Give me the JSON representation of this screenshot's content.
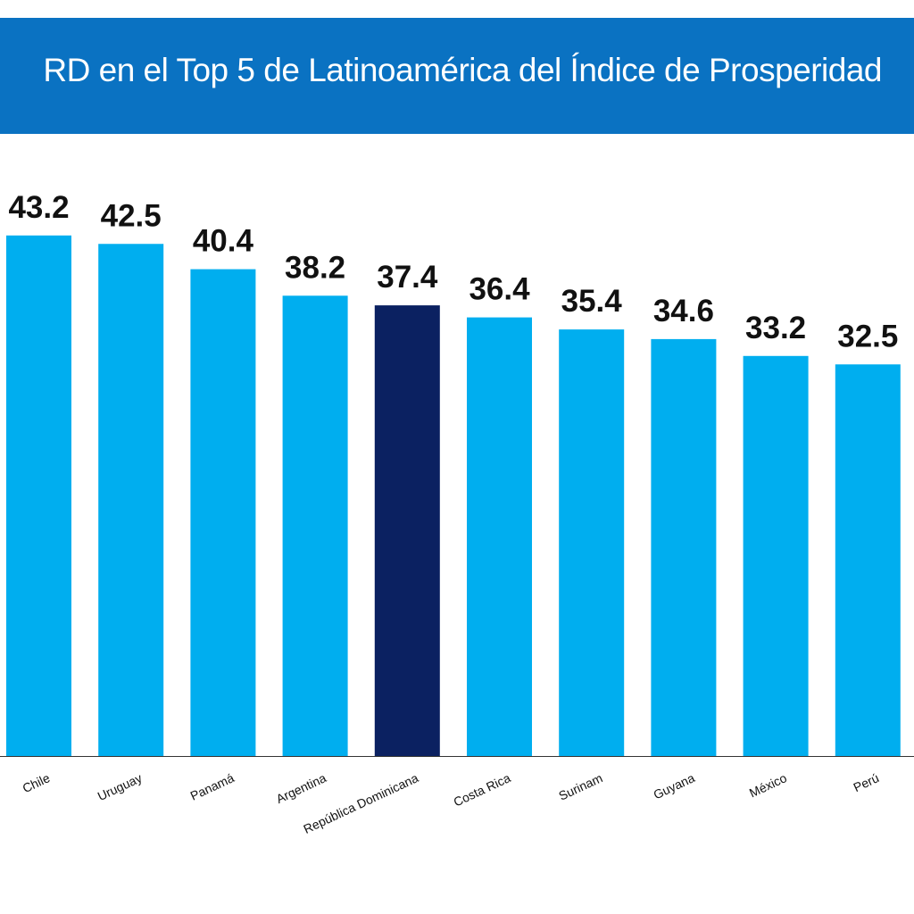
{
  "title": "RD en el Top 5 de Latinoamérica del Índice de Prosperidad",
  "colors": {
    "header_bg": "#0a72c2",
    "bar": "#00aeef",
    "highlight_bar": "#0b2161",
    "axis": "#333333"
  },
  "chart_data": {
    "type": "bar",
    "title": "RD en el Top 5 de Latinoamérica del Índice de Prosperidad",
    "xlabel": "",
    "ylabel": "",
    "categories": [
      "Chile",
      "Uruguay",
      "Panamá",
      "Argentina",
      "República Dominicana",
      "Costa Rica",
      "Surinam",
      "Guyana",
      "México",
      "Perú"
    ],
    "values": [
      43.2,
      42.5,
      40.4,
      38.2,
      37.4,
      36.4,
      35.4,
      34.6,
      33.2,
      32.5
    ],
    "value_labels": [
      "43.2",
      "42.5",
      "40.4",
      "38.2",
      "37.4",
      "36.4",
      "35.4",
      "34.6",
      "33.2",
      "32.5"
    ],
    "highlight": "República Dominicana",
    "grid": false,
    "legend": "none"
  }
}
